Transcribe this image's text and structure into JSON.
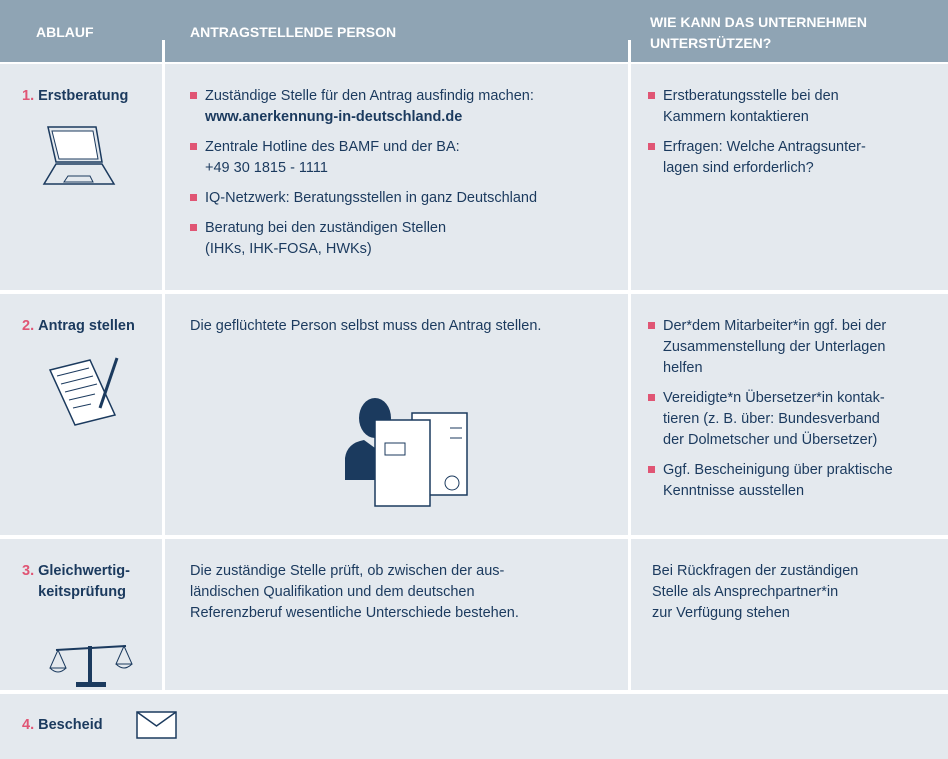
{
  "header": {
    "columns": [
      [
        "ABLAUF"
      ],
      [
        "ANTRAGSTELLENDE PERSON"
      ],
      [
        "WIE KANN DAS UNTERNEHMEN",
        "UNTERSTÜTZEN?"
      ]
    ]
  },
  "rows": [
    {
      "number": "1.",
      "step": [
        "Erstberatung"
      ],
      "person": {
        "bullets": [
          {
            "lines": [
              "Zuständige Stelle für den Antrag ausfindig machen:"
            ],
            "link": "www.anerkennung-in-deutschland.de"
          },
          {
            "lines": [
              "Zentrale Hotline des BAMF und der BA:",
              "+49 30 1815 - 1111"
            ]
          },
          {
            "lines": [
              "IQ-Netzwerk: Beratungsstellen in ganz Deutschland"
            ]
          },
          {
            "lines": [
              "Beratung bei den zuständigen Stellen",
              "(IHKs, IHK-FOSA, HWKs)"
            ]
          }
        ]
      },
      "company": {
        "bullets": [
          {
            "lines": [
              "Erstberatungsstelle bei den",
              "Kammern kontaktieren"
            ]
          },
          {
            "lines": [
              "Erfragen: Welche Antragsunter-",
              "lagen sind erforderlich?"
            ]
          }
        ]
      }
    },
    {
      "number": "2.",
      "step": [
        "Antrag stellen"
      ],
      "person": {
        "text": [
          "Die geflüchtete Person selbst muss den Antrag stellen."
        ]
      },
      "company": {
        "bullets": [
          {
            "lines": [
              "Der*dem Mitarbeiter*in ggf. bei der",
              "Zusammenstellung der Unterlagen",
              "helfen"
            ]
          },
          {
            "lines": [
              "Vereidigte*n Übersetzer*in kontak-",
              "tieren (z. B. über: Bundesverband",
              "der Dolmetscher und Übersetzer)"
            ]
          },
          {
            "lines": [
              "Ggf. Bescheinigung über praktische",
              "Kenntnisse ausstellen"
            ]
          }
        ]
      }
    },
    {
      "number": "3.",
      "step": [
        "Gleichwertig-",
        "keitsprüfung"
      ],
      "person": {
        "text": [
          "Die zuständige Stelle prüft, ob zwischen der aus-",
          "ländischen Qualifikation und dem deutschen",
          "Referenzberuf wesentliche Unterschiede bestehen."
        ]
      },
      "company": {
        "text": [
          "Bei Rückfragen der zuständigen",
          "Stelle als Ansprechpartner*in",
          "zur Verfügung stehen"
        ]
      }
    },
    {
      "number": "4.",
      "step": [
        "Bescheid"
      ]
    }
  ]
}
